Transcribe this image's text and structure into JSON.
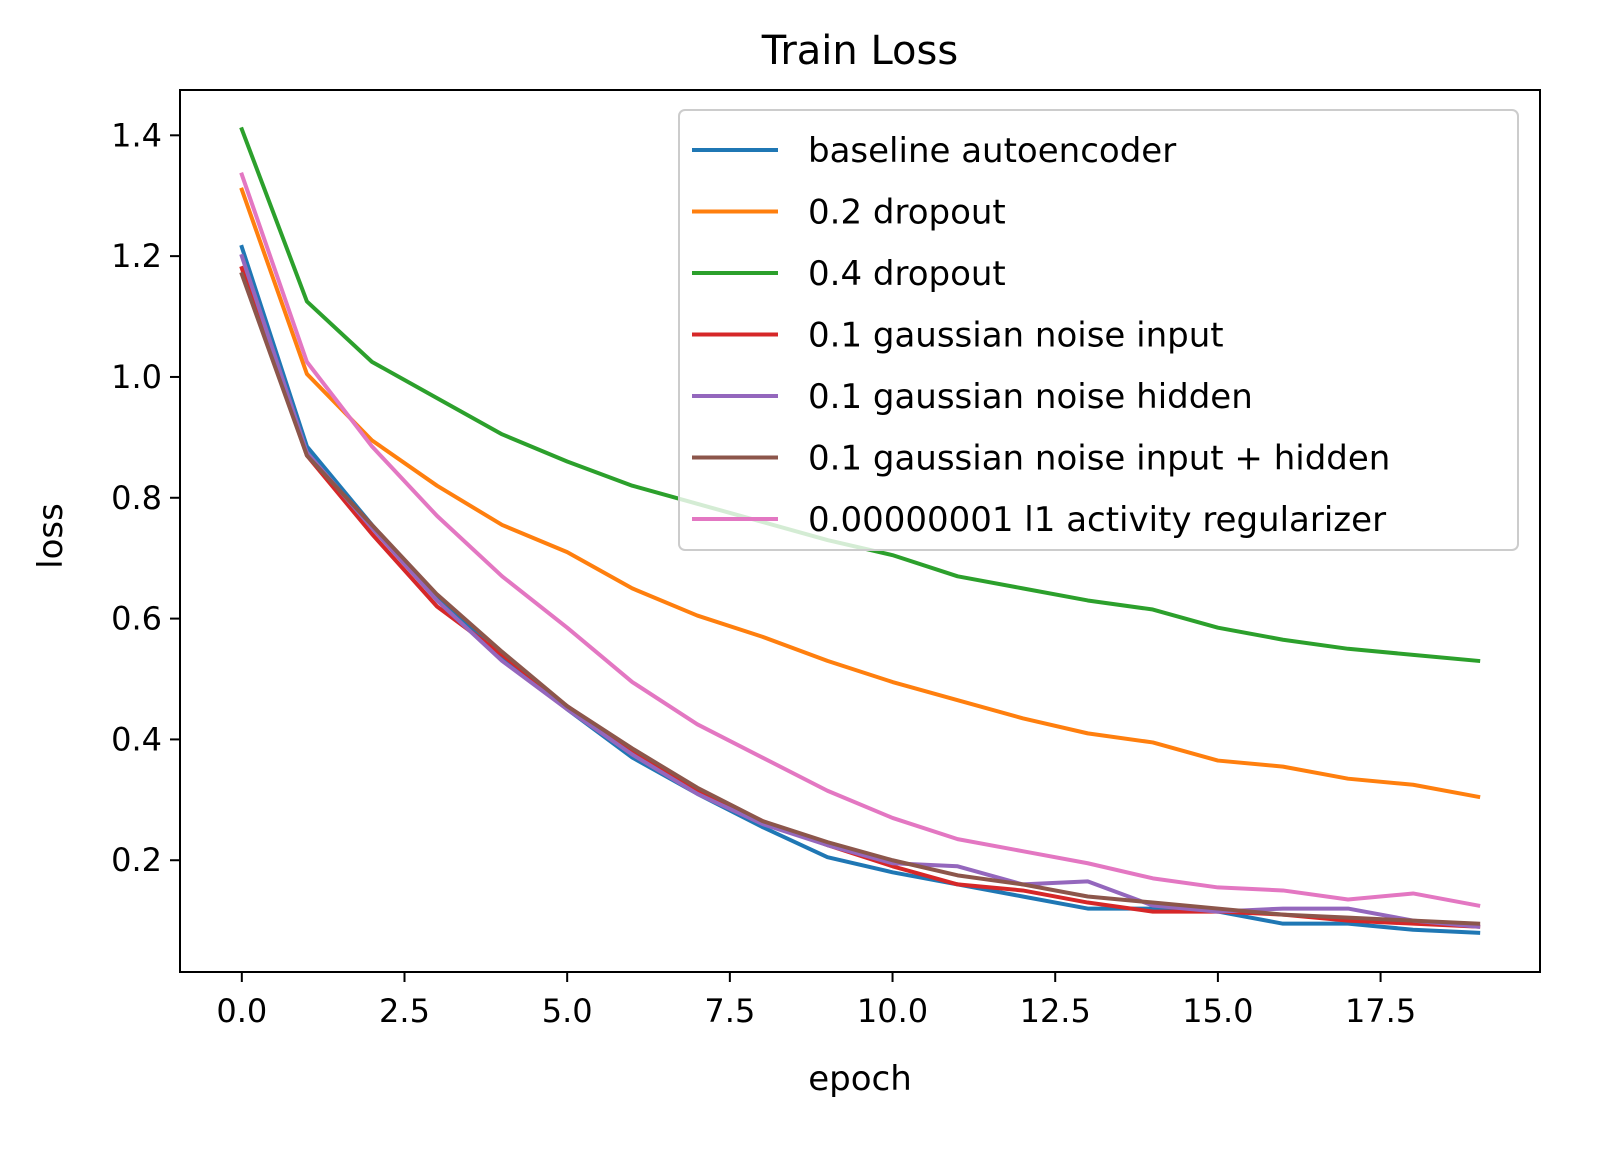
{
  "chart_data": {
    "type": "line",
    "title": "Train Loss",
    "xlabel": "epoch",
    "ylabel": "loss",
    "xlim": [
      -0.95,
      19.95
    ],
    "ylim": [
      0.015,
      1.475
    ],
    "xticks": [
      0.0,
      2.5,
      5.0,
      7.5,
      10.0,
      12.5,
      15.0,
      17.5
    ],
    "xtick_labels": [
      "0.0",
      "2.5",
      "5.0",
      "7.5",
      "10.0",
      "12.5",
      "15.0",
      "17.5"
    ],
    "yticks": [
      0.2,
      0.4,
      0.6,
      0.8,
      1.0,
      1.2,
      1.4
    ],
    "ytick_labels": [
      "0.2",
      "0.4",
      "0.6",
      "0.8",
      "1.0",
      "1.2",
      "1.4"
    ],
    "grid": false,
    "legend_position": "top-right",
    "x": [
      0,
      1,
      2,
      3,
      4,
      5,
      6,
      7,
      8,
      9,
      10,
      11,
      12,
      13,
      14,
      15,
      16,
      17,
      18,
      19
    ],
    "series": [
      {
        "name": "baseline autoencoder",
        "color": "#1f77b4",
        "values": [
          1.215,
          0.885,
          0.755,
          0.635,
          0.535,
          0.45,
          0.37,
          0.31,
          0.255,
          0.205,
          0.18,
          0.16,
          0.14,
          0.12,
          0.12,
          0.115,
          0.095,
          0.095,
          0.085,
          0.08
        ]
      },
      {
        "name": "0.2 dropout",
        "color": "#ff7f0e",
        "values": [
          1.31,
          1.005,
          0.895,
          0.82,
          0.755,
          0.71,
          0.65,
          0.605,
          0.57,
          0.53,
          0.495,
          0.465,
          0.435,
          0.41,
          0.395,
          0.365,
          0.355,
          0.335,
          0.325,
          0.305
        ]
      },
      {
        "name": "0.4 dropout",
        "color": "#2ca02c",
        "values": [
          1.41,
          1.125,
          1.025,
          0.965,
          0.905,
          0.86,
          0.82,
          0.79,
          0.76,
          0.73,
          0.705,
          0.67,
          0.65,
          0.63,
          0.615,
          0.585,
          0.565,
          0.55,
          0.54,
          0.53
        ]
      },
      {
        "name": "0.1 gaussian noise input",
        "color": "#d62728",
        "values": [
          1.18,
          0.87,
          0.74,
          0.62,
          0.54,
          0.455,
          0.38,
          0.315,
          0.265,
          0.225,
          0.19,
          0.16,
          0.15,
          0.13,
          0.115,
          0.115,
          0.11,
          0.1,
          0.095,
          0.09
        ]
      },
      {
        "name": "0.1 gaussian noise hidden",
        "color": "#9467bd",
        "values": [
          1.2,
          0.875,
          0.75,
          0.63,
          0.53,
          0.45,
          0.375,
          0.31,
          0.26,
          0.225,
          0.195,
          0.19,
          0.16,
          0.165,
          0.125,
          0.115,
          0.12,
          0.12,
          0.1,
          0.09
        ]
      },
      {
        "name": "0.1 gaussian noise input + hidden",
        "color": "#8c564b",
        "values": [
          1.17,
          0.87,
          0.755,
          0.64,
          0.545,
          0.455,
          0.385,
          0.32,
          0.265,
          0.23,
          0.2,
          0.175,
          0.16,
          0.14,
          0.13,
          0.12,
          0.11,
          0.105,
          0.1,
          0.095
        ]
      },
      {
        "name": "0.00000001 l1 activity regularizer",
        "color": "#e377c2",
        "values": [
          1.335,
          1.025,
          0.885,
          0.77,
          0.67,
          0.585,
          0.495,
          0.425,
          0.37,
          0.315,
          0.27,
          0.235,
          0.215,
          0.195,
          0.17,
          0.155,
          0.15,
          0.135,
          0.145,
          0.125
        ]
      }
    ]
  }
}
